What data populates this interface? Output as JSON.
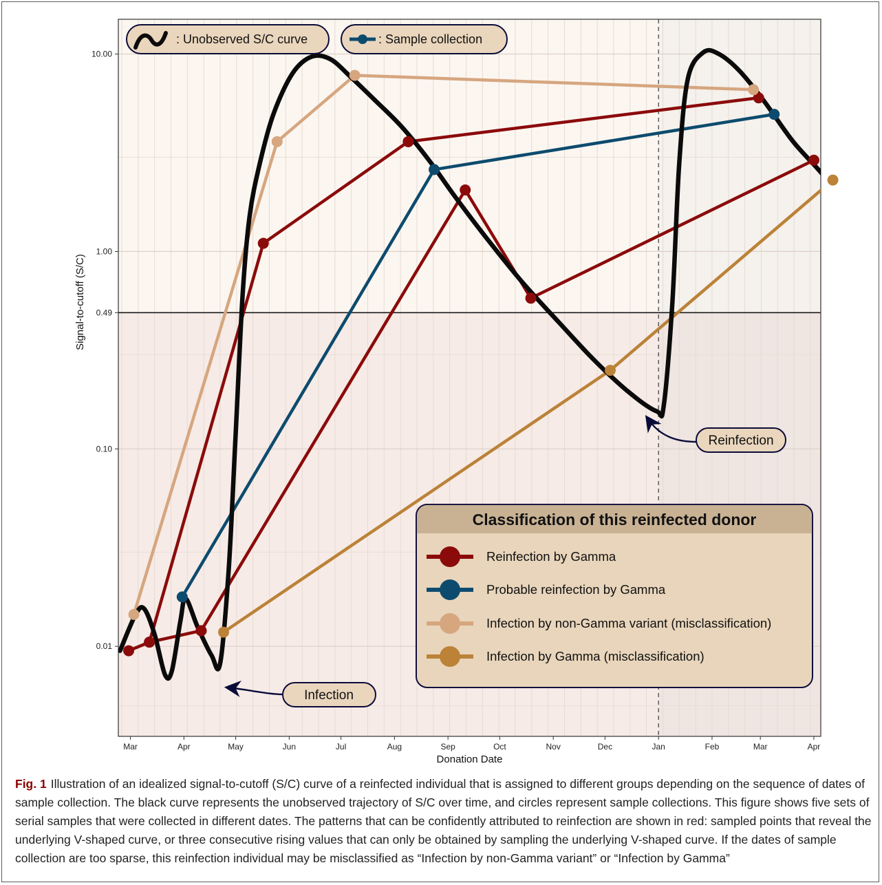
{
  "chart_data": {
    "type": "line",
    "xlabel": "Donation Date",
    "ylabel": "Signal-to-cutoff (S/C)",
    "y_scale": "log",
    "ylim": [
      0.0035,
      15
    ],
    "y_ticks": [
      {
        "value": 0.01,
        "label": "0.01"
      },
      {
        "value": 0.1,
        "label": "0.10"
      },
      {
        "value": 0.49,
        "label": "0.49"
      },
      {
        "value": 1.0,
        "label": "1.00"
      },
      {
        "value": 10.0,
        "label": "10.00"
      }
    ],
    "x_ticks": [
      "Mar",
      "Apr",
      "May",
      "Jun",
      "Jul",
      "Aug",
      "Sep",
      "Oct",
      "Nov",
      "Dec",
      "Jan",
      "Feb",
      "Mar",
      "Apr"
    ],
    "threshold": 0.49,
    "reinfection_line_at": "Jan",
    "legend_top": {
      "curve_label": ": Unobserved S/C curve",
      "sample_label": ": Sample collection"
    },
    "annotations": {
      "infection": "Infection",
      "reinfection": "Reinfection"
    },
    "legend_box": {
      "title": "Classification of this reinfected donor",
      "entries": [
        {
          "label": "Reinfection by Gamma",
          "color": "#8b0b0b"
        },
        {
          "label": "Probable reinfection by Gamma",
          "color": "#0d4b6e"
        },
        {
          "label": "Infection by non-Gamma variant (misclassification)",
          "color": "#d6a67f"
        },
        {
          "label": "Infection by Gamma (misclassification)",
          "color": "#bb8238"
        }
      ]
    },
    "curve": {
      "color": "#0b0b0b",
      "points": [
        [
          "Feb 24",
          0.0095
        ],
        [
          "Mar 5",
          0.0145
        ],
        [
          "Mar 10",
          0.0155
        ],
        [
          "Mar 16",
          0.0115
        ],
        [
          "Mar 22",
          0.0072
        ],
        [
          "Mar 26",
          0.0075
        ],
        [
          "Mar 31",
          0.0135
        ],
        [
          "Apr 3",
          0.0175
        ],
        [
          "Apr 10",
          0.0125
        ],
        [
          "Apr 18",
          0.009
        ],
        [
          "Apr 23",
          0.0082
        ],
        [
          "Apr 28",
          0.025
        ],
        [
          "May 2",
          0.12
        ],
        [
          "May 6",
          0.6
        ],
        [
          "May 10",
          1.5
        ],
        [
          "May 16",
          2.8
        ],
        [
          "May 24",
          5.0
        ],
        [
          "Jun 4",
          8.0
        ],
        [
          "Jun 15",
          9.7
        ],
        [
          "Jun 26",
          9.4
        ],
        [
          "Jul 8",
          7.6
        ],
        [
          "Jul 22",
          5.8
        ],
        [
          "Aug 6",
          4.3
        ],
        [
          "Aug 22",
          2.9
        ],
        [
          "Sep 6",
          1.9
        ],
        [
          "Sep 25",
          1.15
        ],
        [
          "Oct 15",
          0.7
        ],
        [
          "Nov 5",
          0.44
        ],
        [
          "Nov 26",
          0.28
        ],
        [
          "Dec 17",
          0.19
        ],
        [
          "Jan 1",
          0.155
        ],
        [
          "Jan 5",
          0.165
        ],
        [
          "Jan 10",
          0.55
        ],
        [
          "Jan 14",
          2.8
        ],
        [
          "Jan 19",
          7.5
        ],
        [
          "Jan 28",
          10.2
        ],
        [
          "Feb 6",
          10.0
        ],
        [
          "Feb 18",
          8.2
        ],
        [
          "Mar 4",
          5.8
        ],
        [
          "Mar 21",
          3.6
        ],
        [
          "Apr 8",
          2.4
        ],
        [
          "Apr 22",
          1.6
        ]
      ]
    },
    "series": [
      {
        "name": "Reinfection by Gamma",
        "color": "#8b0b0b",
        "x": [
          "Mar 13",
          "May 18",
          "Aug 10"
        ],
        "y": [
          0.0105,
          1.1,
          3.6
        ]
      },
      {
        "name": "Reinfection by Gamma",
        "color": "#8b0b0b",
        "x": [
          "Apr 12",
          "Sep 12",
          "Oct 20",
          "Apr 2"
        ],
        "y": [
          0.012,
          2.05,
          0.58,
          2.9
        ]
      },
      {
        "name": "Reinfection by Gamma",
        "color": "#8b0b0b",
        "x": [
          "Mar 1",
          "Mar 13",
          "Apr 12"
        ],
        "y": [
          0.0095,
          0.0105,
          0.012
        ]
      },
      {
        "name": "Reinfection by Gamma",
        "color": "#8b0b0b",
        "x": [
          "Aug 10",
          "Mar 1"
        ],
        "y": [
          3.6,
          6.0
        ]
      },
      {
        "name": "Probable reinfection by Gamma",
        "color": "#0d4b6e",
        "x": [
          "Apr 1",
          "Aug 25",
          "Mar 10"
        ],
        "y": [
          0.0178,
          2.6,
          4.95
        ]
      },
      {
        "name": "Infection by non-Gamma variant (misclassification)",
        "color": "#d6a67f",
        "x": [
          "Mar 4",
          "May 26",
          "Jul 10",
          "Feb 26"
        ],
        "y": [
          0.0145,
          3.6,
          7.8,
          6.6
        ]
      },
      {
        "name": "Infection by Gamma (misclassification)",
        "color": "#bb8238",
        "x": [
          "Apr 25",
          "Dec 5",
          "Apr 13"
        ],
        "y": [
          0.0118,
          0.25,
          2.3
        ]
      }
    ]
  },
  "caption": {
    "label": "Fig. 1",
    "text": "Illustration of an idealized signal-to-cutoff (S/C) curve of a reinfected individual that is assigned to different groups depending on the sequence of dates of sample collection. The black curve represents the unobserved trajectory of S/C over time, and circles represent sample collections. This figure shows five sets of serial samples that were collected in different dates. The patterns that can be confidently attributed to reinfection are shown in red: sampled points that reveal the underlying V-shaped curve, or three consecutive rising values that can only be obtained by sampling the underlying V-shaped curve. If the dates of sample collection are too sparse, this reinfection individual may be misclassified as “Infection by non-Gamma variant” or “Infection by Gamma”"
  }
}
